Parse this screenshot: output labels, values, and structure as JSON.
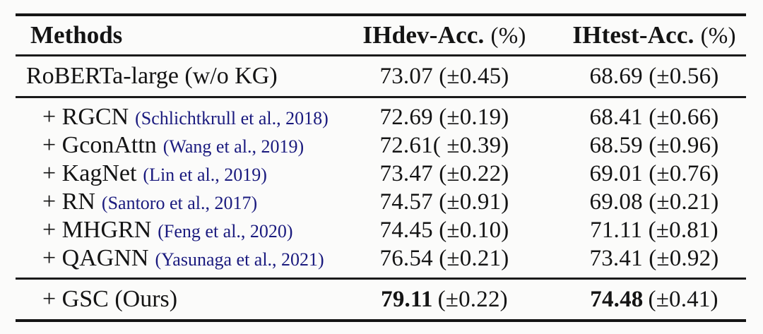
{
  "table": {
    "header": {
      "methods_label": "Methods",
      "dev_label": "IHdev-Acc.",
      "dev_unit": "(%)",
      "test_label": "IHtest-Acc.",
      "test_unit": "(%)"
    },
    "baseline": {
      "name": "RoBERTa-large (w/o KG)",
      "dev": "73.07 (±0.45)",
      "test": "68.69 (±0.56)"
    },
    "rows": [
      {
        "name": "+ RGCN",
        "cite": "(Schlichtkrull et al., 2018)",
        "dev": "72.69 (±0.19)",
        "test": "68.41 (±0.66)"
      },
      {
        "name": "+ GconAttn",
        "cite": "(Wang et al., 2019)",
        "dev": "72.61( ±0.39)",
        "test": "68.59 (±0.96)"
      },
      {
        "name": "+ KagNet",
        "cite": "(Lin et al., 2019)",
        "dev": "73.47 (±0.22)",
        "test": "69.01 (±0.76)"
      },
      {
        "name": "+ RN",
        "cite": "(Santoro et al., 2017)",
        "dev": "74.57 (±0.91)",
        "test": "69.08 (±0.21)"
      },
      {
        "name": "+ MHGRN",
        "cite": "(Feng et al., 2020)",
        "dev": "74.45 (±0.10)",
        "test": "71.11 (±0.81)"
      },
      {
        "name": "+ QAGNN",
        "cite": "(Yasunaga et al., 2021)",
        "dev": "76.54 (±0.21)",
        "test": "73.41 (±0.92)"
      }
    ],
    "ours": {
      "name": "+ GSC (Ours)",
      "dev_score": "79.11",
      "dev_std": "(±0.22)",
      "test_score": "74.48",
      "test_std": "(±0.41)"
    }
  },
  "colors": {
    "citation_navy": "#1a1a7e",
    "rule_black": "#1a1a1a",
    "background": "#fbfbfa"
  }
}
